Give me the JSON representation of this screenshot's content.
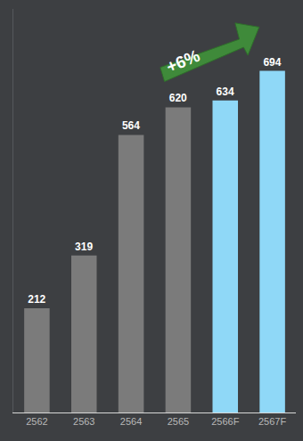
{
  "chart_data": {
    "type": "bar",
    "categories": [
      "2562",
      "2563",
      "2564",
      "2565",
      "2566F",
      "2567F"
    ],
    "values": [
      212,
      319,
      564,
      620,
      634,
      694
    ],
    "colors": [
      "#7b7b7b",
      "#7b7b7b",
      "#7b7b7b",
      "#7b7b7b",
      "#8fd8f7",
      "#8fd8f7"
    ],
    "ylim": [
      0,
      820
    ],
    "yticks": [
      0
    ],
    "grid": false,
    "data_labels": true,
    "tick_labels": "x",
    "annotations": [
      {
        "text": "+6%"
      }
    ]
  }
}
